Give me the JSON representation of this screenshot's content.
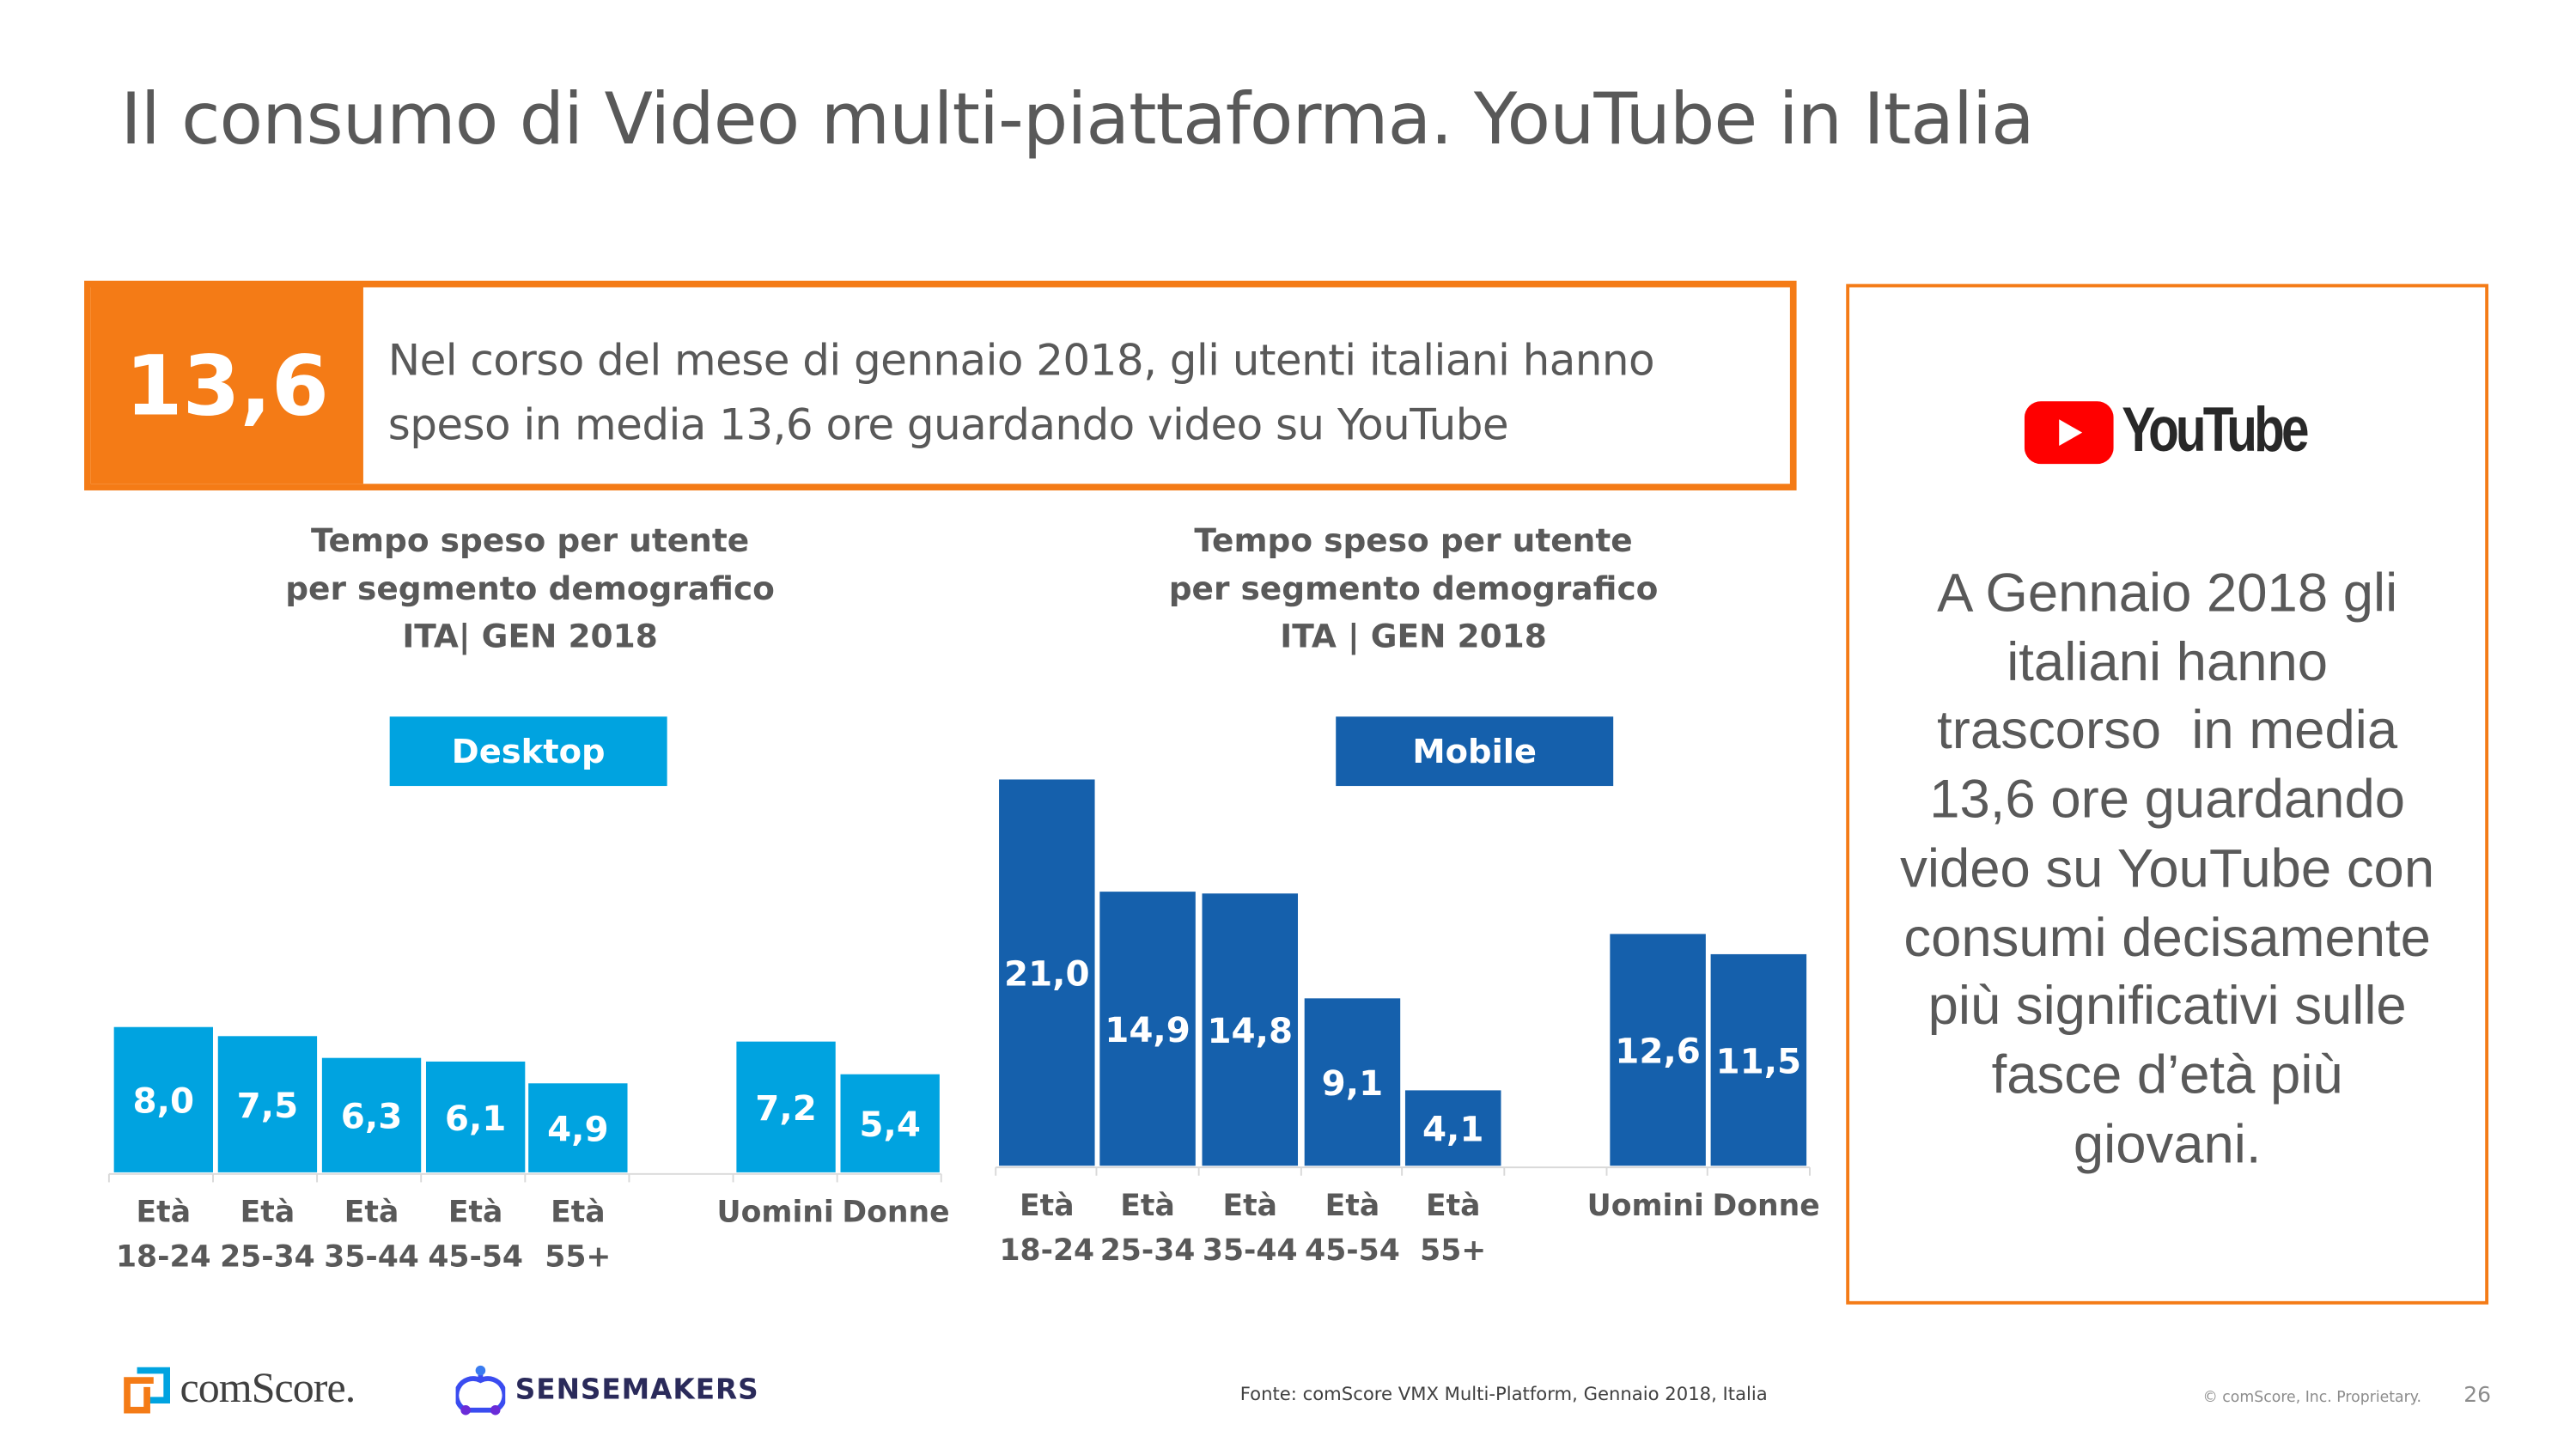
{
  "title": "Il consumo di Video multi-piattaforma. YouTube in Italia",
  "banner": {
    "number": "13,6",
    "line1": "Nel corso del mese di gennaio 2018, gli utenti italiani hanno",
    "line2": "speso in media 13,6 ore guardando video su YouTube"
  },
  "side_panel": {
    "logo_text": "YouTube",
    "text_lines": [
      "A Gennaio 2018 gli",
      "italiani hanno",
      "trascorso  in media",
      "13,6 ore guardando",
      "video su YouTube con",
      "consumi decisamente",
      "più significativi sulle",
      "fasce d’età più",
      "giovani."
    ]
  },
  "chart_data": [
    {
      "type": "bar",
      "title_lines": [
        "Tempo speso per utente",
        "per segmento demografico",
        "ITA| GEN 2018"
      ],
      "tag": "Desktop",
      "color": "#00a3e0",
      "categories": [
        [
          "Età",
          "18-24"
        ],
        [
          "Età",
          "25-34"
        ],
        [
          "Età",
          "35-44"
        ],
        [
          "Età",
          "45-54"
        ],
        [
          "Età",
          "55+"
        ],
        [
          "Uomini"
        ],
        [
          "Donne"
        ]
      ],
      "values": [
        8.0,
        7.5,
        6.3,
        6.1,
        4.9,
        7.2,
        5.4
      ],
      "data_labels": [
        "8,0",
        "7,5",
        "6,3",
        "6,1",
        "4,9",
        "7,2",
        "5,4"
      ]
    },
    {
      "type": "bar",
      "title_lines": [
        "Tempo speso per utente",
        "per segmento demografico",
        "ITA | GEN 2018"
      ],
      "tag": "Mobile",
      "color": "#1560ac",
      "categories": [
        [
          "Età",
          "18-24"
        ],
        [
          "Età",
          "25-34"
        ],
        [
          "Età",
          "35-44"
        ],
        [
          "Età",
          "45-54"
        ],
        [
          "Età",
          "55+"
        ],
        [
          "Uomini"
        ],
        [
          "Donne"
        ]
      ],
      "values": [
        21.0,
        14.9,
        14.8,
        9.1,
        4.1,
        12.6,
        11.5
      ],
      "data_labels": [
        "21,0",
        "14,9",
        "14,8",
        "9,1",
        "4,1",
        "12,6",
        "11,5"
      ]
    }
  ],
  "footer": {
    "comscore_logo": "comScore.",
    "sensemakers_logo": "SENSEMAKERS",
    "source": "Fonte: comScore VMX Multi-Platform, Gennaio 2018, Italia",
    "copyright": "© comScore, Inc. Proprietary.",
    "page": "26"
  },
  "colors": {
    "orange": "#f47b16",
    "desktop": "#00a3e0",
    "mobile": "#1560ac",
    "youtube_red": "#ff0000"
  }
}
